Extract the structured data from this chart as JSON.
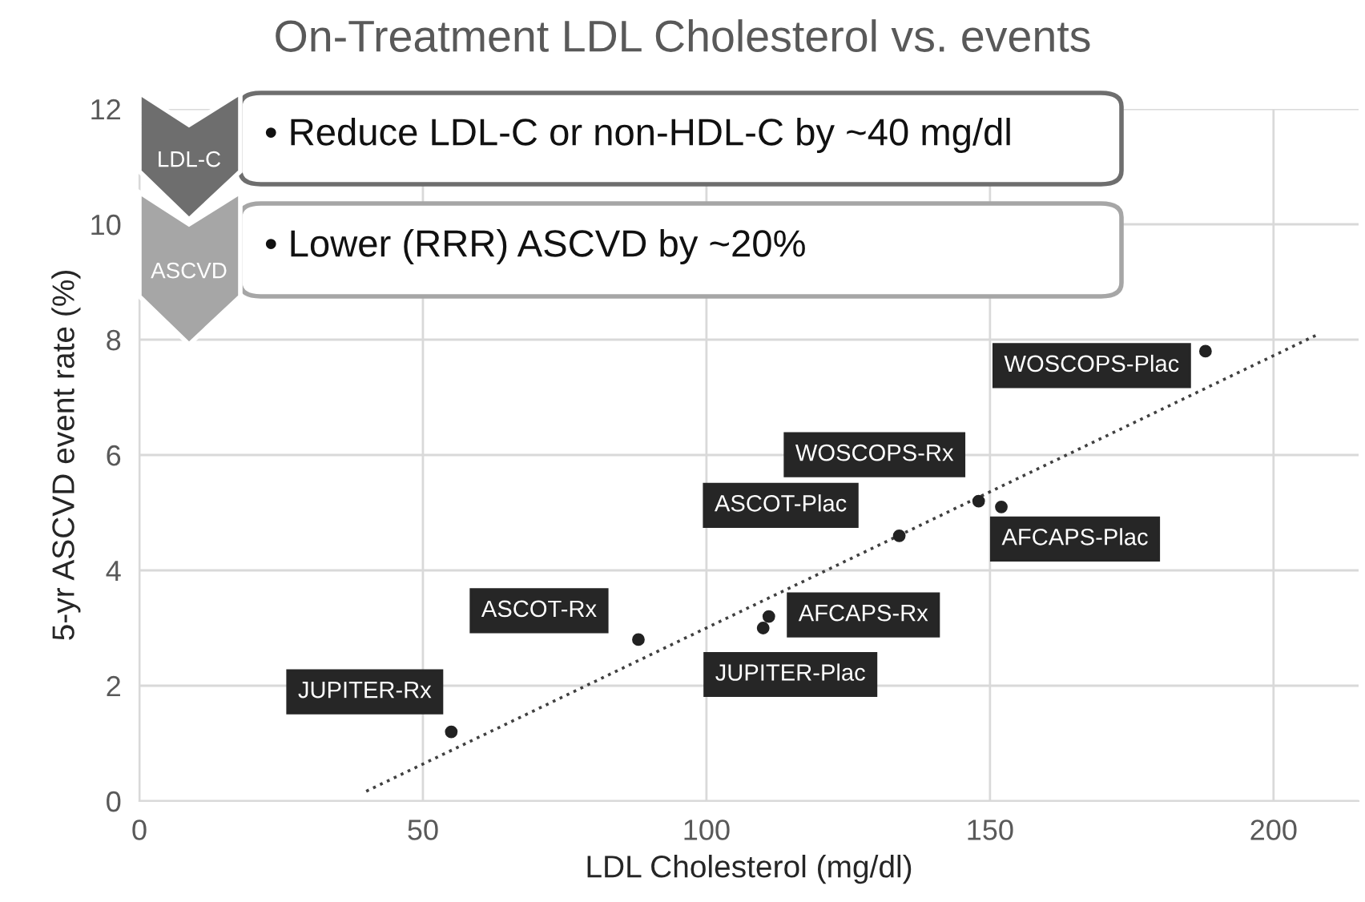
{
  "chart_data": {
    "type": "scatter",
    "title": "On-Treatment LDL Cholesterol vs. events",
    "xlabel": "LDL Cholesterol (mg/dl)",
    "ylabel": "5-yr ASCVD event rate (%)",
    "series": [
      {
        "color": "#222222",
        "x": [
          55,
          88,
          110,
          111,
          134,
          148,
          152,
          188
        ],
        "values": [
          1.2,
          2.8,
          3.0,
          3.2,
          4.6,
          5.2,
          5.1,
          7.8
        ]
      },
      {
        "type": "line",
        "color": "#404040",
        "line_style": "dotted",
        "marker": "none",
        "x": [
          40,
          208
        ],
        "values": [
          0.17,
          8.1
        ]
      }
    ],
    "marker": "circle",
    "xlim": [
      0,
      215
    ],
    "ylim": [
      0,
      12
    ],
    "xticks": [
      0,
      50,
      100,
      150,
      200
    ],
    "yticks": [
      0,
      2,
      4,
      6,
      8,
      10,
      12
    ],
    "grid": true,
    "legend": false,
    "annotations": [
      "LDL-C",
      "• Reduce LDL-C or non-HDL-C by ~40 mg/dl",
      "ASCVD",
      "• Lower (RRR) ASCVD by ~20%",
      "JUPITER-Rx",
      "ASCOT-Rx",
      "JUPITER-Plac",
      "AFCAPS-Rx",
      "ASCOT-Plac",
      "WOSCOPS-Rx",
      "AFCAPS-Plac",
      "WOSCOPS-Plac"
    ]
  }
}
